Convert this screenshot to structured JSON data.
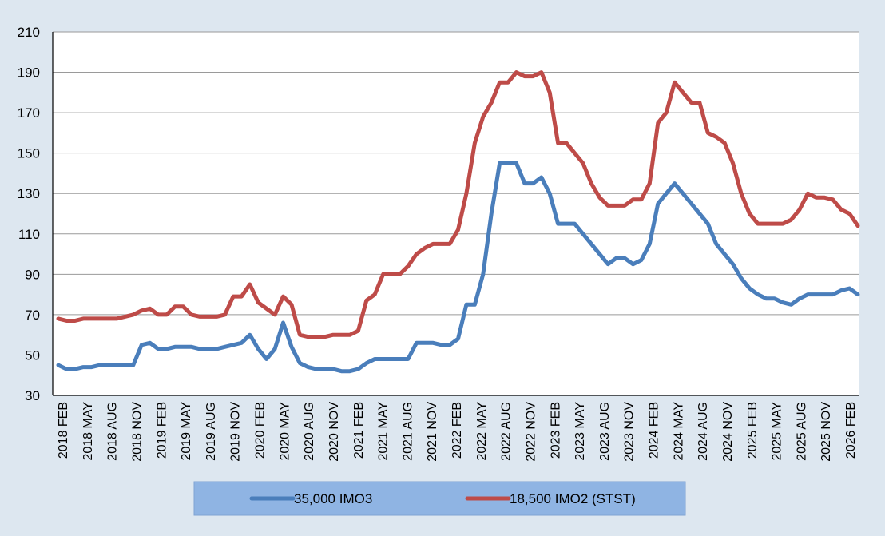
{
  "chart_data": {
    "type": "line",
    "ylim": [
      30,
      210
    ],
    "yticks": [
      30,
      50,
      70,
      90,
      110,
      130,
      150,
      170,
      190,
      210
    ],
    "grid": true,
    "legend_position": "bottom",
    "xtick_labels": [
      "2018 FEB",
      "2018 MAY",
      "2018 AUG",
      "2018 NOV",
      "2019 FEB",
      "2019 MAY",
      "2019 AUG",
      "2019 NOV",
      "2020 FEB",
      "2020 MAY",
      "2020 AUG",
      "2020 NOV",
      "2021 FEB",
      "2021 MAY",
      "2021 AUG",
      "2021 NOV",
      "2022 FEB",
      "2022 MAY",
      "2022 AUG",
      "2022 NOV",
      "2023 FEB",
      "2023 MAY",
      "2023 AUG",
      "2023 NOV",
      "2024 FEB",
      "2024 MAY",
      "2024 AUG",
      "2024 NOV",
      "2025 FEB",
      "2025 MAY",
      "2025 AUG",
      "2025 NOV",
      "2026 FEB"
    ],
    "series": [
      {
        "name": "35,000 IMO3",
        "color": "#4a7ebb",
        "values": [
          45,
          43,
          43,
          44,
          44,
          45,
          45,
          45,
          45,
          45,
          55,
          56,
          53,
          53,
          54,
          54,
          54,
          53,
          53,
          53,
          54,
          55,
          56,
          60,
          53,
          48,
          53,
          66,
          54,
          46,
          44,
          43,
          43,
          43,
          42,
          42,
          43,
          46,
          48,
          48,
          48,
          48,
          48,
          56,
          56,
          56,
          55,
          55,
          58,
          75,
          75,
          90,
          120,
          145,
          145,
          145,
          135,
          135,
          138,
          130,
          115,
          115,
          115,
          110,
          105,
          100,
          95,
          98,
          98,
          95,
          97,
          105,
          125,
          130,
          135,
          130,
          125,
          120,
          115,
          105,
          100,
          95,
          88,
          83,
          80,
          78,
          78,
          76,
          75,
          78,
          80,
          80,
          80,
          80,
          82,
          83,
          80
        ]
      },
      {
        "name": "18,500 IMO2 (STST)",
        "color": "#be4b48",
        "values": [
          68,
          67,
          67,
          68,
          68,
          68,
          68,
          68,
          69,
          70,
          72,
          73,
          70,
          70,
          74,
          74,
          70,
          69,
          69,
          69,
          70,
          79,
          79,
          85,
          76,
          73,
          70,
          79,
          75,
          60,
          59,
          59,
          59,
          60,
          60,
          60,
          62,
          77,
          80,
          90,
          90,
          90,
          94,
          100,
          103,
          105,
          105,
          105,
          112,
          130,
          155,
          168,
          175,
          185,
          185,
          190,
          188,
          188,
          190,
          180,
          155,
          155,
          150,
          145,
          135,
          128,
          124,
          124,
          124,
          127,
          127,
          135,
          165,
          170,
          185,
          180,
          175,
          175,
          160,
          158,
          155,
          145,
          130,
          120,
          115,
          115,
          115,
          115,
          117,
          122,
          130,
          128,
          128,
          127,
          122,
          120,
          114
        ]
      }
    ]
  }
}
